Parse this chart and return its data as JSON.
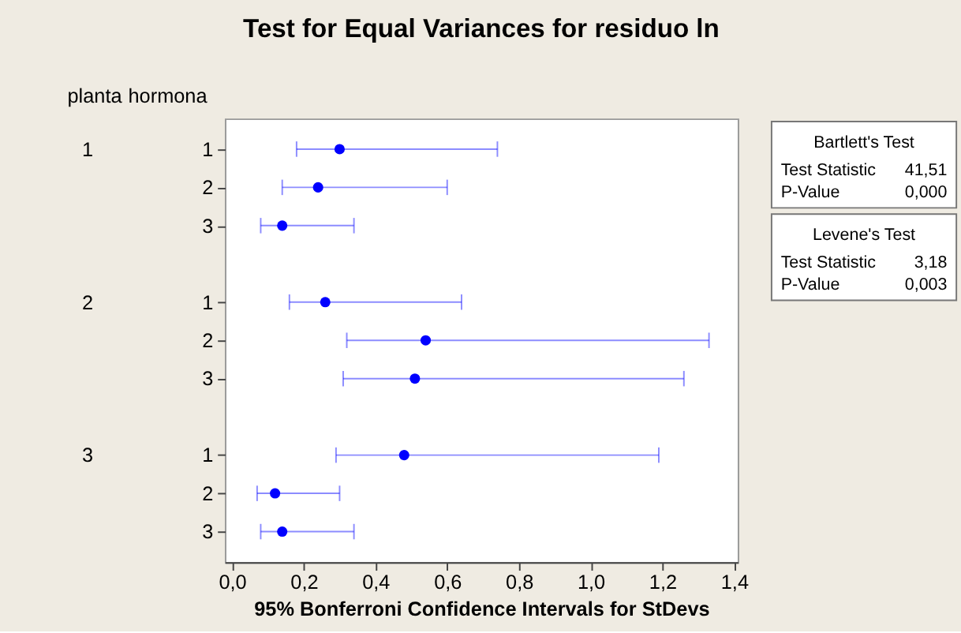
{
  "chart_data": {
    "type": "scatter",
    "orientation": "horizontal",
    "title": "Test for Equal Variances for residuo ln",
    "xlabel": "95% Bonferroni Confidence Intervals for StDevs",
    "ylabel": "hormona",
    "y2label": "planta",
    "categories": [
      "1",
      "2",
      "3",
      null,
      "1",
      "2",
      "3",
      null,
      "1",
      "2",
      "3"
    ],
    "y2_categories": [
      "1",
      null,
      null,
      null,
      "2",
      null,
      null,
      null,
      "3",
      null,
      null
    ],
    "series": [
      {
        "color": "#0000ff",
        "values": [
          0.3,
          0.24,
          0.14,
          null,
          0.26,
          0.54,
          0.51,
          null,
          0.48,
          0.12,
          0.14
        ],
        "errors": [
          [
            0.18,
            0.74
          ],
          [
            0.14,
            0.6
          ],
          [
            0.08,
            0.34
          ],
          null,
          [
            0.16,
            0.64
          ],
          [
            0.32,
            1.33
          ],
          [
            0.31,
            1.26
          ],
          null,
          [
            0.29,
            1.19
          ],
          [
            0.07,
            0.3
          ],
          [
            0.08,
            0.34
          ]
        ]
      }
    ],
    "xlim": [
      -0.02,
      1.41
    ],
    "xticks": [
      {
        "value": 0,
        "label": "0,0"
      },
      {
        "value": 0.2,
        "label": "0,2"
      },
      {
        "value": 0.4,
        "label": "0,4"
      },
      {
        "value": 0.6,
        "label": "0,6"
      },
      {
        "value": 0.8,
        "label": "0,8"
      },
      {
        "value": 1.0,
        "label": "1,0"
      },
      {
        "value": 1.2,
        "label": "1,2"
      },
      {
        "value": 1.4,
        "label": "1,4"
      }
    ],
    "marker": "circle",
    "grid": false,
    "legend": false,
    "annotations": [
      "Bartlett's Test",
      "Test Statistic",
      "41,51",
      "P-Value",
      "0,000",
      "Levene's Test",
      "Test Statistic",
      "3,18",
      "P-Value",
      "0,003"
    ]
  }
}
